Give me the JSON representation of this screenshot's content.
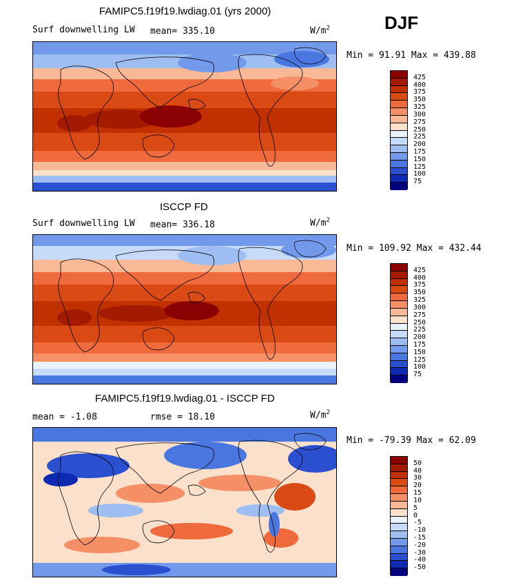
{
  "season": "DJF",
  "panels": [
    {
      "title": "FAMIPC5.f19f19.lwdiag.01 (yrs 2000)",
      "left_label": "Surf downwelling LW",
      "mid_label": "mean= 335.10",
      "units_base": "W/m",
      "units_exp": "2",
      "minmax": "Min =  91.91 Max = 439.88",
      "ticks": [
        "425",
        "400",
        "375",
        "350",
        "325",
        "300",
        "275",
        "250",
        "225",
        "200",
        "175",
        "150",
        "125",
        "100",
        "75"
      ],
      "colors": [
        "#8b0000",
        "#a41a00",
        "#c13100",
        "#d94a14",
        "#ef6a3c",
        "#f48f66",
        "#f9b896",
        "#fbe0cc",
        "#eaf2fb",
        "#c6dbf7",
        "#9ebef2",
        "#7399ea",
        "#4a76e0",
        "#2a50d0",
        "#0e2ab2",
        "#00007f"
      ]
    },
    {
      "title": "ISCCP FD",
      "left_label": "Surf downwelling LW",
      "mid_label": "mean= 336.18",
      "units_base": "W/m",
      "units_exp": "2",
      "minmax": "Min = 109.92 Max = 432.44",
      "ticks": [
        "425",
        "400",
        "375",
        "350",
        "325",
        "300",
        "275",
        "250",
        "225",
        "200",
        "175",
        "150",
        "125",
        "100",
        "75"
      ],
      "colors": [
        "#8b0000",
        "#a41a00",
        "#c13100",
        "#d94a14",
        "#ef6a3c",
        "#f48f66",
        "#f9b896",
        "#fbe0cc",
        "#eaf2fb",
        "#c6dbf7",
        "#9ebef2",
        "#7399ea",
        "#4a76e0",
        "#2a50d0",
        "#0e2ab2",
        "#00007f"
      ]
    },
    {
      "title": "FAMIPC5.f19f19.lwdiag.01 - ISCCP FD",
      "left_label": "mean =  -1.08",
      "mid_label": "rmse =  18.10",
      "units_base": "W/m",
      "units_exp": "2",
      "minmax": "Min = -79.39 Max =  62.09",
      "ticks": [
        "50",
        "40",
        "30",
        "20",
        "15",
        "10",
        "5",
        "0",
        "-5",
        "-10",
        "-15",
        "-20",
        "-30",
        "-40",
        "-50"
      ],
      "colors": [
        "#8b0000",
        "#a41a00",
        "#c13100",
        "#d94a14",
        "#ef6a3c",
        "#f48f66",
        "#f9b896",
        "#fbe0cc",
        "#eaf2fb",
        "#c6dbf7",
        "#9ebef2",
        "#7399ea",
        "#4a76e0",
        "#2a50d0",
        "#0e2ab2",
        "#00007f"
      ]
    }
  ]
}
